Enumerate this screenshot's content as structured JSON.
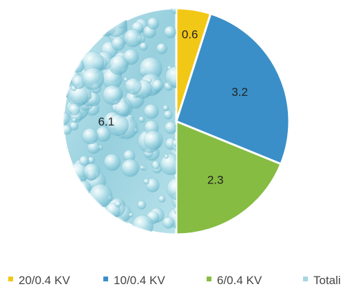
{
  "chart_data": {
    "type": "pie",
    "title": "",
    "slices": [
      {
        "label": "20/0.4 KV",
        "value": 0.6,
        "value_label": "0.6",
        "color": "#f2c817",
        "fill": "solid"
      },
      {
        "label": "10/0.4 KV",
        "value": 3.2,
        "value_label": "3.2",
        "color": "#3a8fc8",
        "fill": "solid"
      },
      {
        "label": "6/0.4 KV",
        "value": 2.3,
        "value_label": "2.3",
        "color": "#86bc42",
        "fill": "solid"
      },
      {
        "label": "Totali",
        "value": 6.1,
        "value_label": "6.1",
        "color": "#a6d6e2",
        "fill": "water-droplet-texture"
      }
    ],
    "legend": {
      "placement": "bottom"
    },
    "start_angle_deg": 0,
    "direction": "clockwise"
  }
}
